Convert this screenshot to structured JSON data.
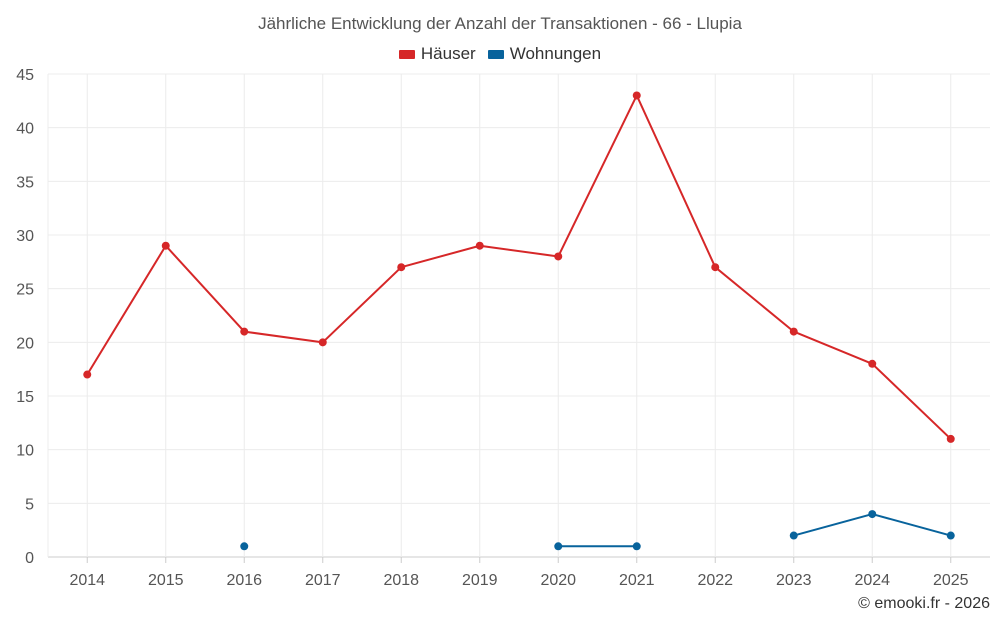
{
  "chart_data": {
    "type": "line",
    "title": "Jährliche Entwicklung der Anzahl der Transaktionen - 66 - Llupia",
    "categories": [
      "2014",
      "2015",
      "2016",
      "2017",
      "2018",
      "2019",
      "2020",
      "2021",
      "2022",
      "2023",
      "2024",
      "2025"
    ],
    "series": [
      {
        "name": "Häuser",
        "color": "#d62728",
        "values": [
          17,
          29,
          21,
          20,
          27,
          29,
          28,
          43,
          27,
          21,
          18,
          11
        ]
      },
      {
        "name": "Wohnungen",
        "color": "#08639c",
        "values": [
          null,
          null,
          1,
          null,
          null,
          null,
          1,
          1,
          null,
          2,
          4,
          2
        ]
      }
    ],
    "ylim": [
      0,
      45
    ],
    "yticks": [
      0,
      5,
      10,
      15,
      20,
      25,
      30,
      35,
      40,
      45
    ],
    "grid": true,
    "legend": "top-center",
    "xlabel": "",
    "ylabel": ""
  },
  "credit": "© emooki.fr - 2026"
}
